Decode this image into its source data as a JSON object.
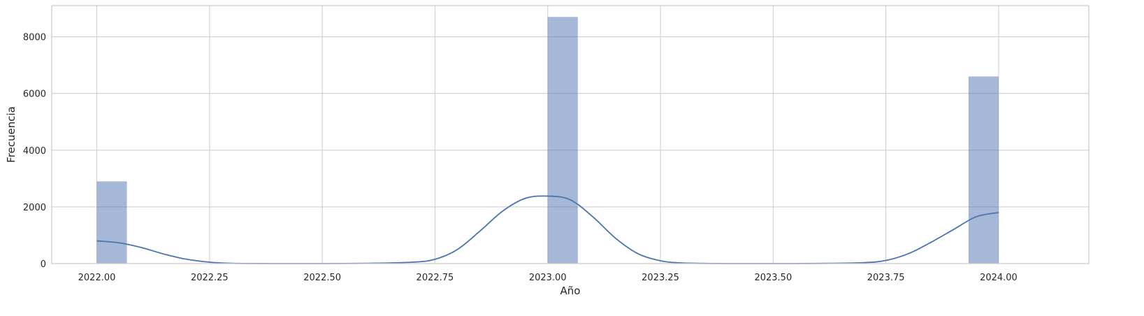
{
  "chart_data": {
    "type": "histogram",
    "xlabel": "Año",
    "ylabel": "Frecuencia",
    "xlim": [
      1989.9,
      2024.2
    ],
    "ylim": [
      0,
      9100
    ],
    "x_ticks": [
      "2022.00",
      "2022.25",
      "2022.50",
      "2022.75",
      "2023.00",
      "2023.25",
      "2023.50",
      "2023.75",
      "2024.00"
    ],
    "y_ticks": [
      "0",
      "2000",
      "4000",
      "6000",
      "8000"
    ],
    "grid": true,
    "bin_width": 0.0667,
    "bins": [
      {
        "x0": 2022.0,
        "x1": 2022.0667,
        "count": 2900
      },
      {
        "x0": 2023.0,
        "x1": 2023.0667,
        "count": 8700
      },
      {
        "x0": 2023.9333,
        "x1": 2024.0,
        "count": 6600
      }
    ],
    "kde": {
      "x": [
        2022.0,
        2022.05,
        2022.1,
        2022.15,
        2022.2,
        2022.25,
        2022.3,
        2022.4,
        2022.5,
        2022.6,
        2022.7,
        2022.75,
        2022.8,
        2022.85,
        2022.9,
        2022.95,
        2023.0,
        2023.05,
        2023.1,
        2023.15,
        2023.2,
        2023.25,
        2023.3,
        2023.4,
        2023.5,
        2023.6,
        2023.7,
        2023.75,
        2023.8,
        2023.85,
        2023.9,
        2023.95,
        2024.0
      ],
      "y": [
        800,
        730,
        560,
        330,
        150,
        50,
        10,
        0,
        0,
        10,
        50,
        150,
        500,
        1150,
        1850,
        2300,
        2380,
        2250,
        1650,
        900,
        350,
        100,
        20,
        0,
        0,
        5,
        30,
        110,
        350,
        750,
        1200,
        1650,
        1800
      ]
    }
  }
}
